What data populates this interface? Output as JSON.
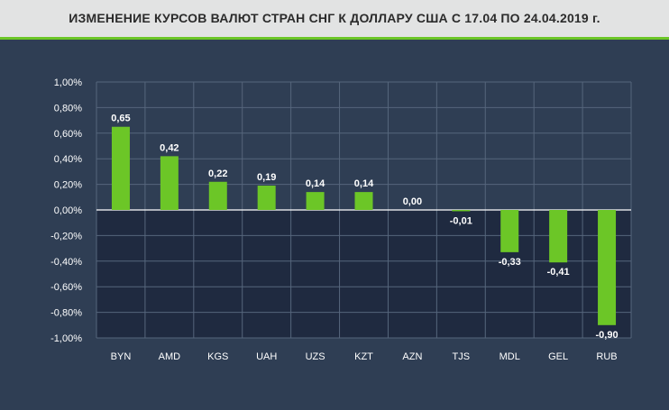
{
  "header": {
    "title": "ИЗМЕНЕНИЕ КУРСОВ ВАЛЮТ СТРАН СНГ К ДОЛЛАРУ США С 17.04 ПО 24.04.2019 г."
  },
  "colors": {
    "background": "#2f3e54",
    "negative_region": "#1f2a40",
    "bar": "#6cc627",
    "header_bg": "#e2e3e3",
    "header_accent": "#6cc627",
    "text": "#ffffff",
    "grid": "#56667c"
  },
  "chart_data": {
    "type": "bar",
    "title": "ИЗМЕНЕНИЕ КУРСОВ ВАЛЮТ СТРАН СНГ К ДОЛЛАРУ США С 17.04 ПО 24.04.2019 г.",
    "categories": [
      "BYN",
      "AMD",
      "KGS",
      "UAH",
      "UZS",
      "KZT",
      "AZN",
      "TJS",
      "MDL",
      "GEL",
      "RUB"
    ],
    "values": [
      0.65,
      0.42,
      0.22,
      0.19,
      0.14,
      0.14,
      0.0,
      -0.01,
      -0.33,
      -0.41,
      -0.9
    ],
    "value_labels": [
      "0,65",
      "0,42",
      "0,22",
      "0,19",
      "0,14",
      "0,14",
      "0,00",
      "-0,01",
      "-0,33",
      "-0,41",
      "-0,90"
    ],
    "ylim": [
      -1.0,
      1.0
    ],
    "yticks": [
      1.0,
      0.8,
      0.6,
      0.4,
      0.2,
      0.0,
      -0.2,
      -0.4,
      -0.6,
      -0.8,
      -1.0
    ],
    "ytick_labels": [
      "1,00%",
      "0,80%",
      "0,60%",
      "0,40%",
      "0,20%",
      "0,00%",
      "-0,20%",
      "-0,40%",
      "-0,60%",
      "-0,80%",
      "-1,00%"
    ],
    "xlabel": "",
    "ylabel": "",
    "grid": true,
    "legend": "none"
  }
}
